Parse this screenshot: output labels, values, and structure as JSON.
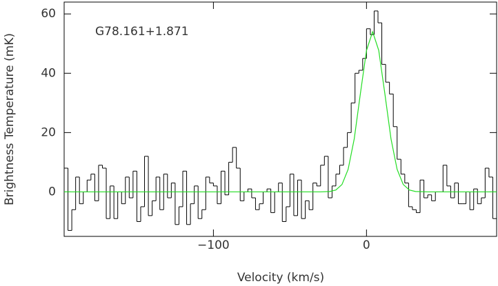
{
  "chart_data": {
    "type": "histogram",
    "annotation": "G78.161+1.871",
    "x_label": "Velocity (km/s)",
    "y_label": "Brightness Temperature (mK)",
    "color": "#000000",
    "bins": [
      -197.5,
      -195,
      -192.5,
      -190,
      -187.5,
      -185,
      -182.5,
      -180,
      -177.5,
      -175,
      -172.5,
      -170,
      -167.5,
      -165,
      -162.5,
      -160,
      -157.5,
      -155,
      -152.5,
      -150,
      -147.5,
      -145,
      -142.5,
      -140,
      -137.5,
      -135,
      -132.5,
      -130,
      -127.5,
      -125,
      -122.5,
      -120,
      -117.5,
      -115,
      -112.5,
      -110,
      -107.5,
      -105,
      -102.5,
      -100,
      -97.5,
      -95,
      -92.5,
      -90,
      -87.5,
      -85,
      -82.5,
      -80,
      -77.5,
      -75,
      -72.5,
      -70,
      -67.5,
      -65,
      -62.5,
      -60,
      -57.5,
      -55,
      -52.5,
      -50,
      -47.5,
      -45,
      -42.5,
      -40,
      -37.5,
      -35,
      -32.5,
      -30,
      -27.5,
      -25,
      -22.5,
      -20,
      -17.5,
      -15,
      -12.5,
      -10,
      -7.5,
      -5,
      -2.5,
      0,
      2.5,
      5,
      7.5,
      10,
      12.5,
      15,
      17.5,
      20,
      22.5,
      25,
      27.5,
      30,
      32.5,
      35,
      37.5,
      40,
      42.5,
      45,
      47.5,
      50,
      52.5,
      55,
      57.5,
      60,
      62.5,
      65,
      67.5,
      70,
      72.5,
      75,
      77.5,
      80,
      82.5,
      85
    ],
    "values": [
      8,
      -13,
      -6,
      5,
      -4,
      0,
      4,
      6,
      -3,
      9,
      8,
      -9,
      2,
      -9,
      0,
      -4,
      5,
      -2,
      7,
      -10,
      -5,
      12,
      -8,
      -3,
      5,
      -6,
      6,
      -2,
      3,
      -11,
      -5,
      7,
      -11,
      -4,
      2,
      -9,
      -6,
      5,
      3,
      2,
      -4,
      7,
      -1,
      10,
      15,
      8,
      -3,
      0,
      1,
      -2,
      -6,
      -4,
      0,
      1,
      -7,
      0,
      3,
      -10,
      -5,
      6,
      -8,
      4,
      -9,
      -3,
      -6,
      3,
      2,
      9,
      12,
      -2,
      2,
      6,
      9,
      15,
      20,
      30,
      40,
      41,
      45,
      55,
      53,
      61,
      57,
      43,
      37,
      33,
      22,
      11,
      6,
      3,
      -5,
      -6,
      -7,
      4,
      -2,
      -1,
      -3,
      0,
      0,
      9,
      2,
      -2,
      3,
      -4,
      -4,
      0,
      -6,
      1,
      -4,
      -2,
      8,
      5,
      -9
    ],
    "fit": {
      "color": "#22dd22",
      "x": [
        -197.5,
        -30,
        -24,
        -20,
        -16,
        -12,
        -8,
        -4,
        0,
        4,
        8,
        12,
        16,
        20,
        24,
        28,
        32,
        40,
        85
      ],
      "values": [
        0,
        0,
        0.13,
        0.65,
        2.5,
        7.6,
        17.9,
        33.1,
        47.7,
        54,
        47.7,
        33.1,
        17.9,
        7.6,
        2.5,
        0.65,
        0.13,
        0,
        0
      ]
    },
    "xlim": [
      -197.5,
      85
    ],
    "ylim": [
      -15,
      64
    ],
    "xticks": [
      {
        "value": -100,
        "label": "−100"
      },
      0
    ],
    "yticks": [
      0,
      20,
      40,
      60
    ]
  }
}
